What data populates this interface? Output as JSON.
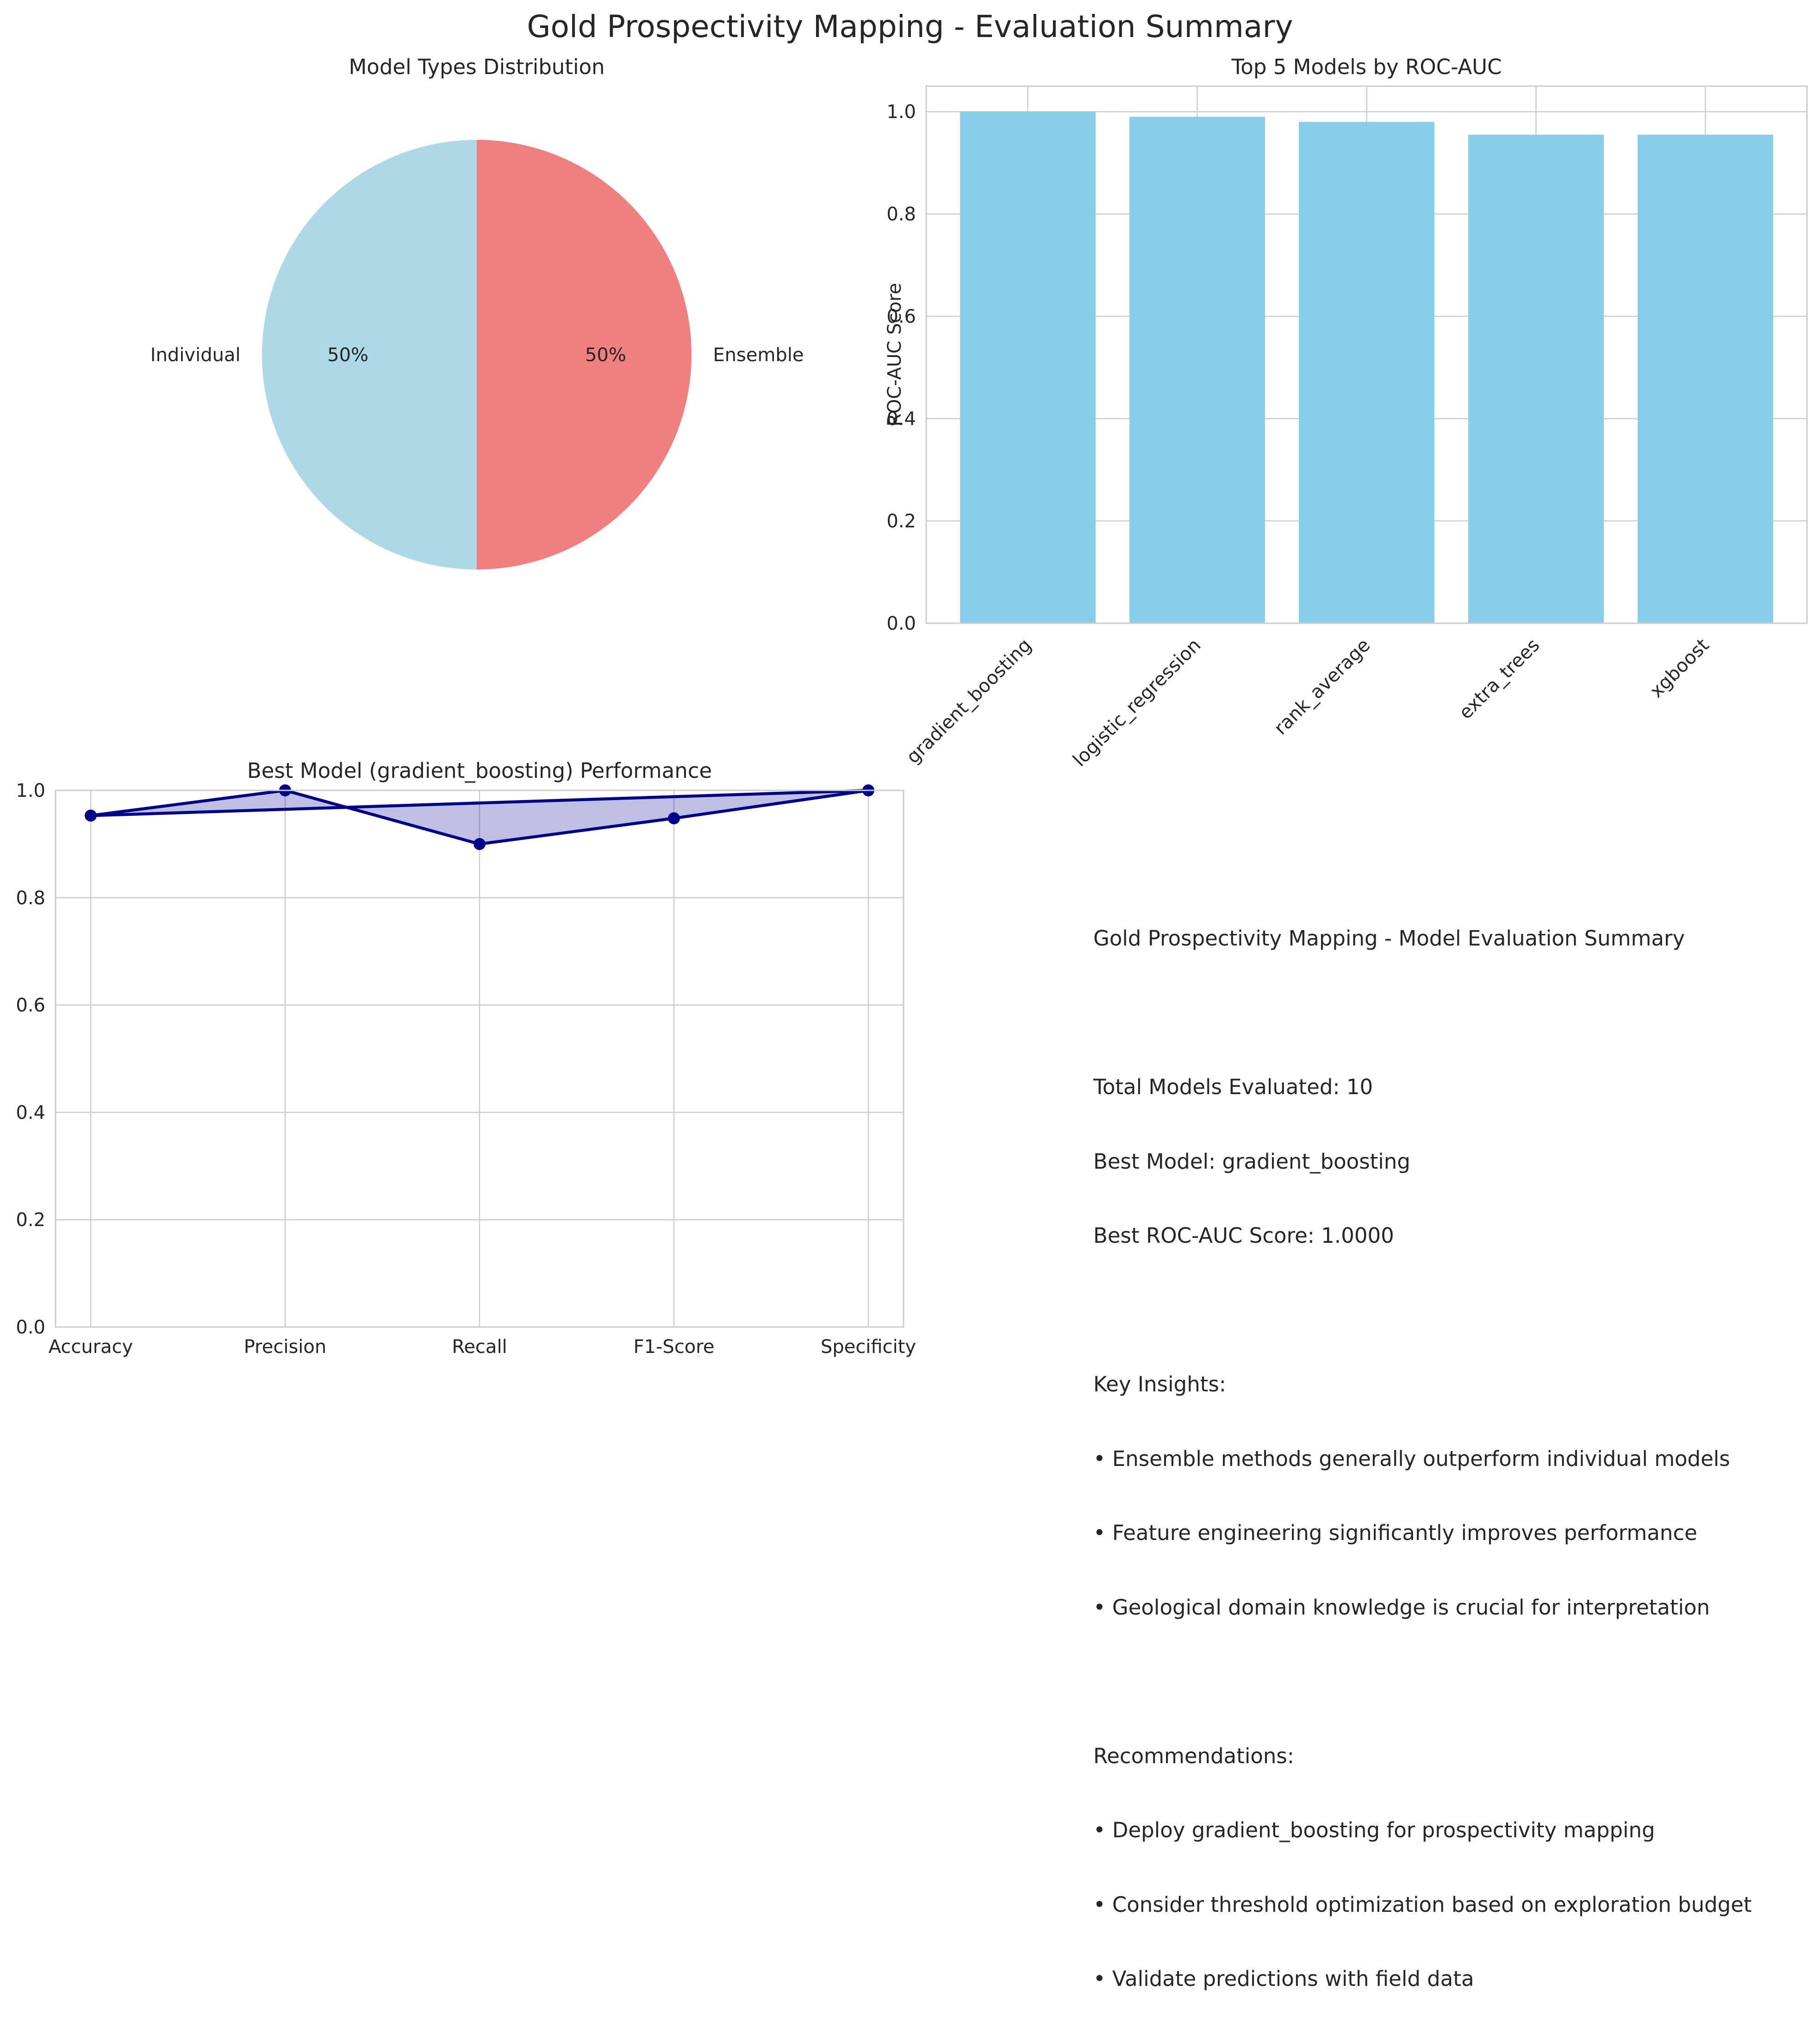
{
  "figure": {
    "suptitle": "Gold Prospectivity Mapping - Evaluation Summary"
  },
  "colors": {
    "pie_individual": "#add8e6",
    "pie_ensemble": "#f08080",
    "bars": "#87ceeb",
    "radar_line": "#00008b",
    "radar_fill": "#00008b",
    "grid": "#cccccc",
    "axis": "#cccccc"
  },
  "chart_data": [
    {
      "type": "pie",
      "title": "Model Types Distribution",
      "labels": [
        "Individual",
        "Ensemble"
      ],
      "values": [
        50,
        50
      ],
      "pct_labels": [
        "50%",
        "50%"
      ],
      "colors": [
        "#add8e6",
        "#f08080"
      ]
    },
    {
      "type": "bar",
      "title": "Top 5 Models by ROC-AUC",
      "categories": [
        "gradient_boosting",
        "logistic_regression",
        "rank_average",
        "extra_trees",
        "xgboost"
      ],
      "values": [
        1.0,
        0.99,
        0.98,
        0.955,
        0.955
      ],
      "xlabel": "",
      "ylabel": "ROC-AUC Score",
      "ylim": [
        0,
        1.05
      ],
      "yticks": [
        "0.0",
        "0.2",
        "0.4",
        "0.6",
        "0.8",
        "1.0"
      ],
      "grid": true
    },
    {
      "type": "line",
      "title": "Best Model (gradient_boosting) Performance",
      "categories": [
        "Accuracy",
        "Precision",
        "Recall",
        "F1-Score",
        "Specificity"
      ],
      "values": [
        0.953,
        1.0,
        0.9,
        0.948,
        1.0
      ],
      "closed": true,
      "filled": true,
      "xlabel": "",
      "ylabel": "",
      "ylim": [
        0,
        1.0
      ],
      "yticks": [
        "0.0",
        "0.2",
        "0.4",
        "0.6",
        "0.8",
        "1.0"
      ],
      "grid": true
    }
  ],
  "summary": {
    "title": "Gold Prospectivity Mapping - Model Evaluation Summary",
    "total_models": "Total Models Evaluated: 10",
    "best_model": "Best Model: gradient_boosting",
    "best_score": "Best ROC-AUC Score: 1.0000",
    "insights_heading": "Key Insights:",
    "insights": [
      "• Ensemble methods generally outperform individual models",
      "• Feature engineering significantly improves performance",
      "• Geological domain knowledge is crucial for interpretation"
    ],
    "recommendations_heading": "Recommendations:",
    "recommendations": [
      "• Deploy gradient_boosting for prospectivity mapping",
      "• Consider threshold optimization based on exploration budget",
      "• Validate predictions with field data"
    ]
  }
}
